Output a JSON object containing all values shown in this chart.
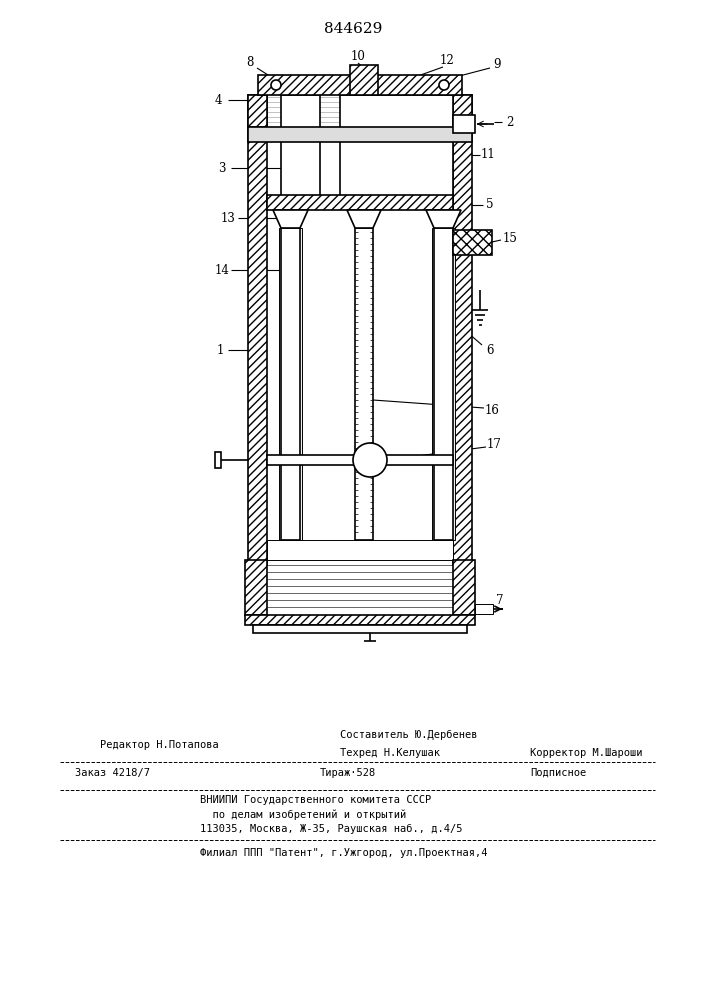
{
  "patent_number": "844629",
  "bg_color": "#ffffff",
  "line_color": "#000000",
  "fig_width": 7.07,
  "fig_height": 10.0,
  "dpi": 100,
  "footer": {
    "sostavitel": "Составитель Ю.Дербенев",
    "tehred": "Техред Н.Келушак",
    "korrektor": "Корректор М.Шароши",
    "redaktor": "Редактор Н.Потапова",
    "zakaz": "Заказ 4218/7",
    "tirazh": "Тираж·528",
    "podpisnoe": "Подписное",
    "vniip1": "ВНИИПИ Государственного комитета СССР",
    "vniip2": "  по делам изобретений и открытий",
    "vniip3": "113035, Москва, Ж-35, Раушская наб., д.4/5",
    "filial": "Филиал ППП \"Патент\", г.Ужгород, ул.Проектная,4"
  }
}
